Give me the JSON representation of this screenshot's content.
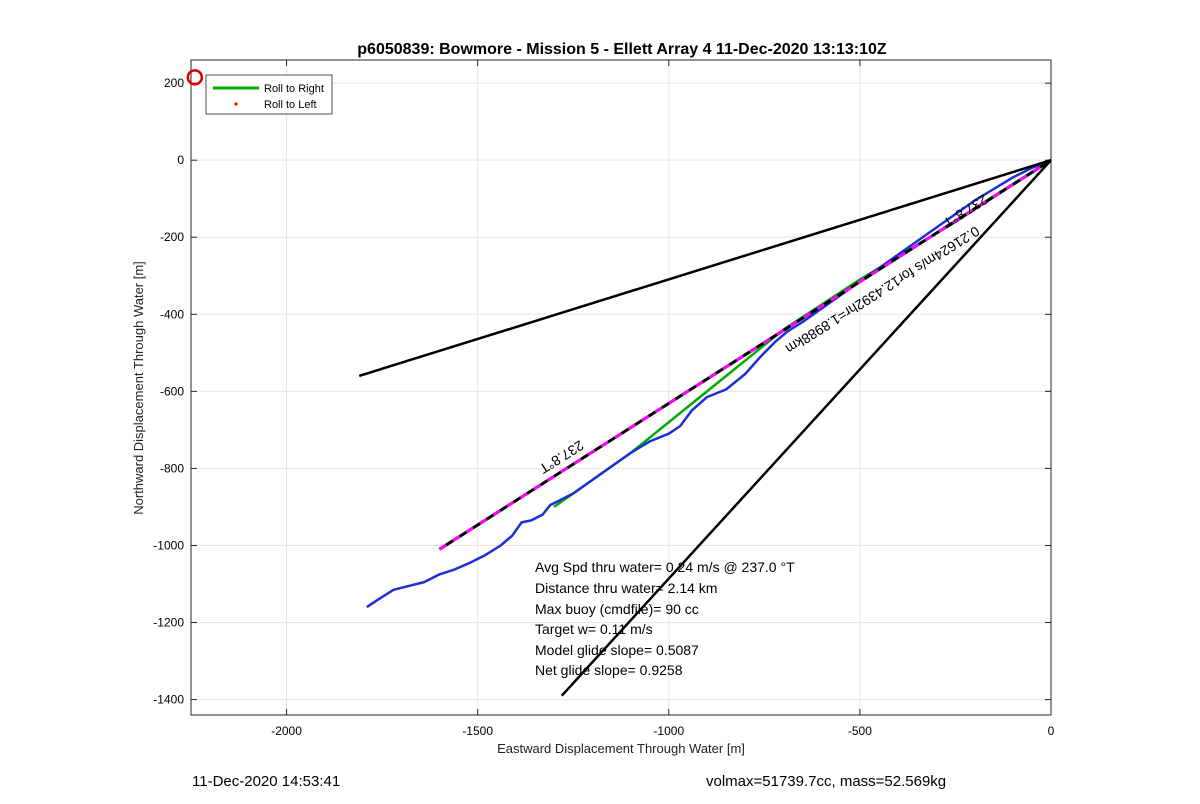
{
  "chart_data": {
    "type": "line",
    "title": "p6050839: Bowmore - Mission 5 - Ellett Array 4 11-Dec-2020 13:13:10Z",
    "xlabel": "Eastward Displacement Through Water [m]",
    "ylabel": "Northward Displacement Through Water [m]",
    "xlim": [
      -2250,
      0
    ],
    "ylim": [
      -1440,
      260
    ],
    "xticks": [
      -2000,
      -1500,
      -1000,
      -500,
      0
    ],
    "yticks": [
      200,
      0,
      -200,
      -400,
      -600,
      -800,
      -1000,
      -1200,
      -1400
    ],
    "grid": true,
    "legend_position": "top-left",
    "legend": [
      {
        "label": "Roll to Right",
        "color": "#00aa00",
        "style": "line"
      },
      {
        "label": "Roll to Left",
        "color": "#ff0000",
        "style": "dot"
      }
    ],
    "series": [
      {
        "name": "Roll to Right",
        "color": "#00aa00",
        "x": [
          0,
          -250,
          -500,
          -700,
          -900,
          -1100,
          -1300
        ],
        "y": [
          0,
          -160,
          -310,
          -440,
          -600,
          -760,
          -900
        ]
      },
      {
        "color": "#1a2fd6",
        "x": [
          -1790,
          -1760,
          -1720,
          -1680,
          -1640,
          -1600,
          -1560,
          -1520,
          -1480,
          -1440,
          -1410,
          -1385,
          -1360,
          -1330,
          -1310,
          -1290,
          -1250,
          -1200,
          -1150,
          -1100,
          -1050,
          -1000,
          -970,
          -940,
          -900,
          -850,
          -800,
          -760,
          -720,
          -690,
          -650,
          -600,
          -550,
          -500,
          -450,
          -400,
          -350,
          -300,
          -250,
          -200,
          -150,
          -100,
          -50,
          0
        ],
        "y": [
          -1160,
          -1140,
          -1115,
          -1105,
          -1095,
          -1075,
          -1062,
          -1045,
          -1025,
          -1000,
          -975,
          -940,
          -935,
          -920,
          -895,
          -885,
          -865,
          -830,
          -795,
          -760,
          -730,
          -710,
          -690,
          -650,
          -615,
          -595,
          -555,
          -510,
          -470,
          -445,
          -420,
          -385,
          -350,
          -315,
          -280,
          -245,
          -210,
          -175,
          -140,
          -105,
          -75,
          -45,
          -20,
          0
        ]
      },
      {
        "color": "#ff00ff",
        "style": "dashed",
        "x": [
          -1600,
          0
        ],
        "y": [
          -1010,
          0
        ]
      },
      {
        "color": "#000000",
        "x": [
          -1810,
          0
        ],
        "y": [
          -560,
          0
        ]
      },
      {
        "color": "#000000",
        "x": [
          -1280,
          0
        ],
        "y": [
          -1390,
          0
        ]
      }
    ],
    "current_marker": {
      "x": -2240,
      "y": 215,
      "color": "#dd0000"
    },
    "annotations": {
      "heading_label_1": "237.8°T",
      "heading_label_2": "237.8°T",
      "speed_label": "0.21624m/s for12.4392hr=1.8988km",
      "stats": [
        "Avg Spd thru water=  0.24 m/s @ 237.0 °T",
        "Distance thru water=  2.14 km",
        "Max buoy (cmdfile)= 90 cc",
        "Target w= 0.11 m/s",
        "Model glide slope= 0.5087",
        "Net glide slope= 0.9258"
      ]
    }
  },
  "footer": {
    "timestamp": "11-Dec-2020 14:53:41",
    "info": "volmax=51739.7cc, mass=52.569kg"
  }
}
